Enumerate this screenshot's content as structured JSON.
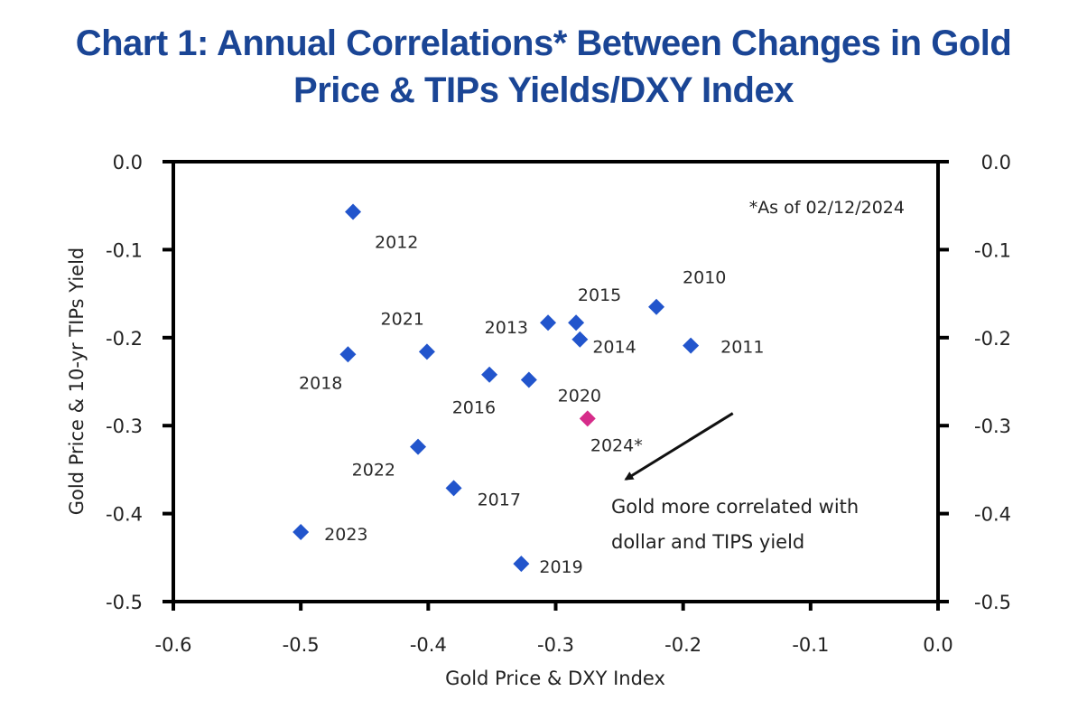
{
  "title_lines": [
    "Chart 1: Annual Correlations* Between Changes in Gold",
    "Price & TIPs Yields/DXY Index"
  ],
  "chart_data": {
    "type": "scatter",
    "title": "Chart 1: Annual Correlations* Between Changes in Gold Price & TIPs Yields/DXY Index",
    "xlabel": "Gold Price & DXY Index",
    "ylabel": "Gold Price & 10-yr TIPs Yield",
    "xlim": [
      -0.6,
      0.0
    ],
    "ylim": [
      -0.5,
      0.0
    ],
    "x_ticks": [
      -0.6,
      -0.5,
      -0.4,
      -0.3,
      -0.2,
      -0.1,
      0.0
    ],
    "x_tick_labels": [
      "-0.6",
      "-0.5",
      "-0.4",
      "-0.3",
      "-0.2",
      "-0.1",
      "0.0"
    ],
    "y_ticks": [
      0.0,
      -0.1,
      -0.2,
      -0.3,
      -0.4,
      -0.5
    ],
    "y_tick_labels": [
      "0.0",
      "-0.1",
      "-0.2",
      "-0.3",
      "-0.4",
      "-0.5"
    ],
    "secondary_y_axis": true,
    "grid": false,
    "legend": null,
    "colors": {
      "default": "#2255cc",
      "highlight": "#d62c8a"
    },
    "points": [
      {
        "label": "2010",
        "x": -0.221,
        "y": -0.165,
        "label_pos": "above-right",
        "highlight": false
      },
      {
        "label": "2011",
        "x": -0.194,
        "y": -0.209,
        "label_pos": "right",
        "highlight": false
      },
      {
        "label": "2012",
        "x": -0.459,
        "y": -0.057,
        "label_pos": "below-right",
        "highlight": false
      },
      {
        "label": "2013",
        "x": -0.306,
        "y": -0.183,
        "label_pos": "left",
        "highlight": false
      },
      {
        "label": "2014",
        "x": -0.281,
        "y": -0.202,
        "label_pos": "right",
        "highlight": false
      },
      {
        "label": "2015",
        "x": -0.284,
        "y": -0.183,
        "label_pos": "above",
        "highlight": false
      },
      {
        "label": "2016",
        "x": -0.352,
        "y": -0.242,
        "label_pos": "below-left",
        "highlight": false
      },
      {
        "label": "2017",
        "x": -0.38,
        "y": -0.371,
        "label_pos": "right",
        "highlight": false
      },
      {
        "label": "2018",
        "x": -0.463,
        "y": -0.219,
        "label_pos": "below-left",
        "highlight": false
      },
      {
        "label": "2019",
        "x": -0.327,
        "y": -0.457,
        "label_pos": "right",
        "highlight": false
      },
      {
        "label": "2020",
        "x": -0.321,
        "y": -0.248,
        "label_pos": "below-right",
        "highlight": false
      },
      {
        "label": "2021",
        "x": -0.401,
        "y": -0.216,
        "label_pos": "above-left",
        "highlight": false
      },
      {
        "label": "2022",
        "x": -0.408,
        "y": -0.324,
        "label_pos": "below-left",
        "highlight": false
      },
      {
        "label": "2023",
        "x": -0.5,
        "y": -0.421,
        "label_pos": "right",
        "highlight": false
      },
      {
        "label": "2024*",
        "x": -0.275,
        "y": -0.292,
        "label_pos": "below",
        "highlight": true
      }
    ],
    "annotations": {
      "note": "*As of 02/12/2024",
      "callout_lines": [
        "Gold more correlated with",
        "dollar and TIPS yield"
      ],
      "arrow": {
        "from": [
          -0.161,
          -0.286
        ],
        "to": [
          -0.245,
          -0.361
        ]
      }
    }
  }
}
